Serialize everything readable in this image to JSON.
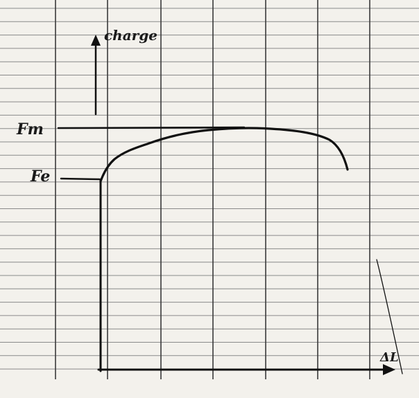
{
  "labels": {
    "y_axis": "charge",
    "fm": "Fm",
    "fe": "Fe",
    "x_axis": "ΔL"
  }
}
